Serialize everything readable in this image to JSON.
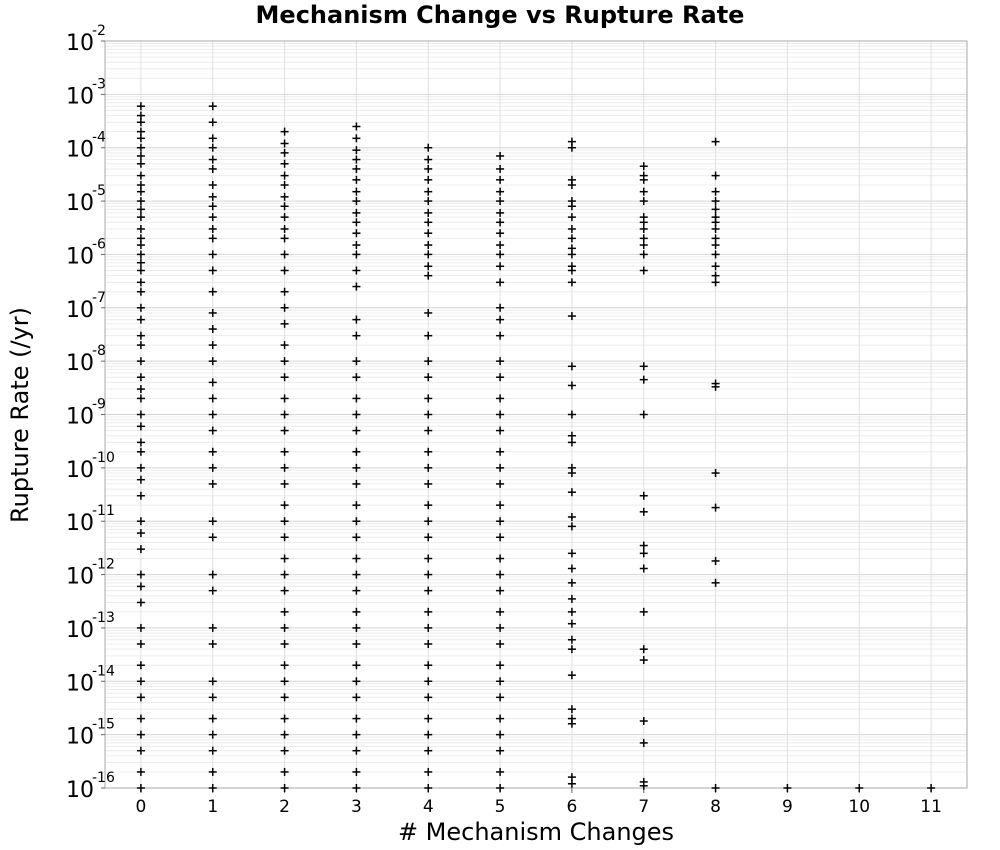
{
  "chart_data": {
    "type": "scatter",
    "title": "Mechanism Change vs Rupture Rate",
    "xlabel": "# Mechanism Changes",
    "ylabel": "Rupture Rate (/yr)",
    "xlim": [
      -0.5,
      11.5
    ],
    "ylim": [
      1e-16,
      0.01
    ],
    "yscale": "log",
    "x_ticks": [
      "0",
      "1",
      "2",
      "3",
      "4",
      "5",
      "6",
      "7",
      "8",
      "9",
      "10",
      "11"
    ],
    "y_ticks": [
      {
        "base": "10",
        "exp": "-2"
      },
      {
        "base": "10",
        "exp": "-3"
      },
      {
        "base": "10",
        "exp": "-4"
      },
      {
        "base": "10",
        "exp": "-5"
      },
      {
        "base": "10",
        "exp": "-6"
      },
      {
        "base": "10",
        "exp": "-7"
      },
      {
        "base": "10",
        "exp": "-8"
      },
      {
        "base": "10",
        "exp": "-9"
      },
      {
        "base": "10",
        "exp": "-10"
      },
      {
        "base": "10",
        "exp": "-11"
      },
      {
        "base": "10",
        "exp": "-12"
      },
      {
        "base": "10",
        "exp": "-13"
      },
      {
        "base": "10",
        "exp": "-14"
      },
      {
        "base": "10",
        "exp": "-15"
      },
      {
        "base": "10",
        "exp": "-16"
      }
    ],
    "grid": true,
    "marker": "+",
    "marker_color": "#000000",
    "points": [
      {
        "x": 0,
        "y": [
          0.0006,
          0.0004,
          0.0003,
          0.0002,
          0.00015,
          0.0001,
          7e-05,
          5e-05,
          3e-05,
          2e-05,
          1.5e-05,
          1e-05,
          7e-06,
          5e-06,
          3e-06,
          2e-06,
          1.5e-06,
          1e-06,
          7e-07,
          5e-07,
          3e-07,
          2e-07,
          1e-07,
          6e-08,
          3e-08,
          2e-08,
          1e-08,
          5e-09,
          3e-09,
          2e-09,
          1e-09,
          6e-10,
          3e-10,
          2e-10,
          1e-10,
          6e-11,
          3e-11,
          1e-11,
          6e-12,
          3e-12,
          1e-12,
          6e-13,
          3e-13,
          1e-13,
          5e-14,
          2e-14,
          1e-14,
          5e-15,
          2e-15,
          1e-15,
          5e-16,
          2e-16,
          1e-16
        ]
      },
      {
        "x": 1,
        "y": [
          0.0006,
          0.0003,
          0.00015,
          0.0001,
          6e-05,
          4e-05,
          2e-05,
          1.2e-05,
          8e-06,
          5e-06,
          3e-06,
          2e-06,
          1e-06,
          5e-07,
          2e-07,
          8e-08,
          4e-08,
          2e-08,
          1e-08,
          4e-09,
          2e-09,
          1e-09,
          5e-10,
          2e-10,
          1e-10,
          5e-11,
          1e-11,
          5e-12,
          1e-12,
          5e-13,
          1e-13,
          5e-14,
          1e-14,
          5e-15,
          2e-15,
          1e-15,
          5e-16,
          2e-16,
          1e-16
        ]
      },
      {
        "x": 2,
        "y": [
          0.0002,
          0.00012,
          8e-05,
          5e-05,
          3e-05,
          2e-05,
          1.2e-05,
          8e-06,
          5e-06,
          3e-06,
          2e-06,
          1e-06,
          5e-07,
          2e-07,
          1e-07,
          5e-08,
          2e-08,
          1e-08,
          5e-09,
          2e-09,
          1e-09,
          5e-10,
          2e-10,
          1e-10,
          5e-11,
          2e-11,
          1e-11,
          5e-12,
          2e-12,
          1e-12,
          5e-13,
          2e-13,
          1e-13,
          5e-14,
          2e-14,
          1e-14,
          5e-15,
          2e-15,
          1e-15,
          5e-16,
          2e-16,
          1e-16
        ]
      },
      {
        "x": 3,
        "y": [
          0.00025,
          0.00015,
          9e-05,
          6e-05,
          4e-05,
          2.5e-05,
          1.5e-05,
          1e-05,
          6e-06,
          4e-06,
          2.5e-06,
          1.5e-06,
          1e-06,
          5e-07,
          2.5e-07,
          6e-08,
          3e-08,
          1e-08,
          5e-09,
          2e-09,
          1e-09,
          5e-10,
          2e-10,
          1e-10,
          5e-11,
          2e-11,
          1e-11,
          5e-12,
          2e-12,
          1e-12,
          5e-13,
          2e-13,
          1e-13,
          5e-14,
          2e-14,
          1e-14,
          5e-15,
          2e-15,
          1e-15,
          5e-16,
          2e-16,
          1e-16
        ]
      },
      {
        "x": 4,
        "y": [
          0.0001,
          6e-05,
          4e-05,
          2.5e-05,
          1.5e-05,
          1e-05,
          6e-06,
          4e-06,
          2.5e-06,
          1.5e-06,
          1e-06,
          6e-07,
          4e-07,
          8e-08,
          3e-08,
          1e-08,
          5e-09,
          2e-09,
          1e-09,
          5e-10,
          2e-10,
          1e-10,
          5e-11,
          2e-11,
          1e-11,
          5e-12,
          2e-12,
          1e-12,
          5e-13,
          2e-13,
          1e-13,
          5e-14,
          2e-14,
          1e-14,
          5e-15,
          2e-15,
          1e-15,
          5e-16,
          2e-16,
          1e-16
        ]
      },
      {
        "x": 5,
        "y": [
          7e-05,
          4e-05,
          2.5e-05,
          1.5e-05,
          1e-05,
          6e-06,
          4e-06,
          2.5e-06,
          1.5e-06,
          1e-06,
          6e-07,
          3e-07,
          1e-07,
          6e-08,
          3e-08,
          1e-08,
          5e-09,
          2e-09,
          1e-09,
          5e-10,
          2e-10,
          1e-10,
          5e-11,
          2e-11,
          1e-11,
          5e-12,
          2e-12,
          1e-12,
          5e-13,
          2e-13,
          1e-13,
          5e-14,
          2e-14,
          1e-14,
          5e-15,
          2e-15,
          1e-15,
          5e-16,
          2e-16,
          1e-16
        ]
      },
      {
        "x": 6,
        "y": [
          0.00013,
          0.0001,
          2.5e-05,
          2e-05,
          1e-05,
          8e-06,
          5e-06,
          3e-06,
          2e-06,
          1.3e-06,
          1e-06,
          6e-07,
          5e-07,
          3e-07,
          7e-08,
          8e-09,
          3.5e-09,
          1e-09,
          4e-10,
          3e-10,
          1e-10,
          8e-11,
          3.5e-11,
          1.2e-11,
          8e-12,
          2.5e-12,
          1.3e-12,
          7e-13,
          3.5e-13,
          2e-13,
          1.2e-13,
          6e-14,
          4e-14,
          1.3e-14,
          3e-15,
          2e-15,
          1.6e-15,
          1.6e-16,
          1.2e-16
        ]
      },
      {
        "x": 7,
        "y": [
          4.5e-05,
          3e-05,
          2.5e-05,
          1.5e-05,
          1e-05,
          5e-06,
          4e-06,
          3e-06,
          2e-06,
          1.5e-06,
          1e-06,
          5e-07,
          8e-09,
          4.5e-09,
          1e-09,
          3e-11,
          1.5e-11,
          3.5e-12,
          2.5e-12,
          1.3e-12,
          2e-13,
          4e-14,
          2.5e-14,
          1.8e-15,
          7e-16,
          1.3e-16,
          1.1e-16
        ]
      },
      {
        "x": 8,
        "y": [
          0.00013,
          3e-05,
          1.5e-05,
          1e-05,
          7e-06,
          5e-06,
          4e-06,
          3e-06,
          2e-06,
          1.5e-06,
          1e-06,
          6e-07,
          4e-07,
          3e-07,
          3.8e-09,
          3.3e-09,
          8e-11,
          1.8e-11,
          1.8e-12,
          7e-13,
          1e-16
        ]
      },
      {
        "x": 9,
        "y": [
          1e-16
        ]
      },
      {
        "x": 10,
        "y": [
          1e-16
        ]
      },
      {
        "x": 11,
        "y": [
          1e-16
        ]
      }
    ]
  }
}
